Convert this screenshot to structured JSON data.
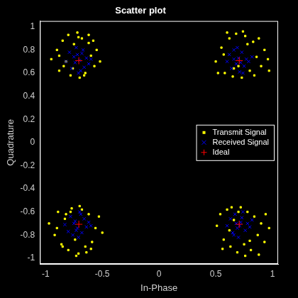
{
  "chart_data": {
    "type": "scatter",
    "title": "Scatter plot",
    "x_label": "In-Phase",
    "y_label": "Quadrature",
    "xlim": [
      -1.05,
      1.05
    ],
    "ylim": [
      -1.05,
      1.05
    ],
    "xticks": [
      -1,
      -0.5,
      0,
      0.5,
      1
    ],
    "yticks": [
      -1,
      -0.8,
      -0.6,
      -0.4,
      -0.2,
      0,
      0.2,
      0.4,
      0.6,
      0.8,
      1
    ],
    "grid": false,
    "legend": "right",
    "series": [
      {
        "name": "Transmit Signal",
        "color": "#ffff00",
        "marker": "square",
        "x": [
          -0.95,
          -0.9,
          -0.88,
          -0.85,
          -0.82,
          -0.8,
          -0.78,
          -0.75,
          -0.72,
          -0.7,
          -0.68,
          -0.65,
          -0.62,
          -0.6,
          -0.57,
          -0.55,
          -0.52,
          -0.88,
          -0.62,
          -0.76,
          -0.66,
          -0.84,
          -0.58,
          -0.71,
          0.5,
          0.55,
          0.58,
          0.62,
          0.65,
          0.68,
          0.7,
          0.73,
          0.76,
          0.8,
          0.83,
          0.86,
          0.9,
          0.93,
          0.96,
          0.52,
          0.6,
          0.88,
          0.78,
          0.66,
          0.84,
          0.57,
          0.74,
          0.97,
          -0.97,
          -0.92,
          -0.89,
          -0.86,
          -0.83,
          -0.8,
          -0.77,
          -0.74,
          -0.71,
          -0.68,
          -0.65,
          -0.62,
          -0.59,
          -0.56,
          -0.53,
          -0.5,
          -0.9,
          -0.64,
          -0.78,
          -0.7,
          -0.85,
          -0.6,
          -0.73,
          -0.82,
          0.51,
          0.54,
          0.57,
          0.6,
          0.63,
          0.66,
          0.69,
          0.72,
          0.75,
          0.78,
          0.81,
          0.84,
          0.87,
          0.9,
          0.93,
          0.97,
          0.56,
          0.64,
          0.88,
          0.7,
          0.8,
          0.62,
          0.76,
          0.94
        ],
        "values": [
          0.72,
          0.8,
          0.62,
          0.88,
          0.7,
          0.93,
          0.58,
          0.85,
          0.95,
          0.56,
          0.9,
          0.6,
          0.86,
          0.75,
          0.66,
          0.8,
          0.7,
          0.75,
          0.93,
          0.64,
          0.58,
          0.66,
          0.88,
          0.91,
          0.7,
          0.82,
          0.6,
          0.9,
          0.57,
          0.94,
          0.66,
          0.56,
          0.92,
          0.62,
          0.87,
          0.74,
          0.66,
          0.8,
          0.72,
          0.6,
          0.95,
          0.9,
          0.85,
          0.64,
          0.58,
          0.76,
          0.96,
          0.62,
          -0.7,
          -0.8,
          -0.6,
          -0.88,
          -0.66,
          -0.93,
          -0.57,
          -0.84,
          -0.96,
          -0.58,
          -0.9,
          -0.62,
          -0.86,
          -0.74,
          -0.64,
          -0.78,
          -0.74,
          -0.95,
          -0.6,
          -0.55,
          -0.9,
          -0.92,
          -0.98,
          -0.62,
          -0.72,
          -0.62,
          -0.84,
          -0.58,
          -0.9,
          -0.67,
          -0.95,
          -0.56,
          -0.88,
          -0.6,
          -0.93,
          -0.64,
          -0.8,
          -0.7,
          -0.86,
          -0.74,
          -0.92,
          -0.56,
          -0.97,
          -0.6,
          -0.85,
          -0.76,
          -0.98,
          -0.62
        ]
      },
      {
        "name": "Received Signal",
        "color": "#0000ff",
        "marker": "x",
        "x": [
          -0.82,
          -0.79,
          -0.77,
          -0.75,
          -0.73,
          -0.71,
          -0.7,
          -0.68,
          -0.66,
          -0.64,
          -0.62,
          -0.6,
          -0.74,
          -0.69,
          -0.72,
          -0.67,
          0.6,
          0.62,
          0.64,
          0.66,
          0.68,
          0.7,
          0.71,
          0.73,
          0.75,
          0.77,
          0.79,
          0.82,
          0.69,
          0.74,
          0.72,
          0.66,
          -0.83,
          -0.8,
          -0.78,
          -0.76,
          -0.74,
          -0.72,
          -0.7,
          -0.68,
          -0.66,
          -0.64,
          -0.62,
          -0.6,
          -0.71,
          -0.75,
          -0.69,
          -0.73,
          0.6,
          0.63,
          0.65,
          0.67,
          0.69,
          0.7,
          0.72,
          0.74,
          0.76,
          0.78,
          0.8,
          0.82,
          0.71,
          0.68,
          0.73,
          0.66
        ],
        "values": [
          0.7,
          0.78,
          0.64,
          0.74,
          0.82,
          0.6,
          0.71,
          0.77,
          0.65,
          0.73,
          0.68,
          0.72,
          0.69,
          0.62,
          0.76,
          0.8,
          0.7,
          0.76,
          0.64,
          0.8,
          0.68,
          0.73,
          0.61,
          0.78,
          0.66,
          0.72,
          0.7,
          0.74,
          0.82,
          0.6,
          0.69,
          0.72,
          -0.71,
          -0.77,
          -0.64,
          -0.8,
          -0.68,
          -0.74,
          -0.6,
          -0.78,
          -0.66,
          -0.73,
          -0.69,
          -0.72,
          -0.82,
          -0.7,
          -0.62,
          -0.76,
          -0.72,
          -0.66,
          -0.78,
          -0.62,
          -0.74,
          -0.82,
          -0.69,
          -0.6,
          -0.76,
          -0.7,
          -0.73,
          -0.67,
          -0.72,
          -0.7,
          -0.65,
          -0.8
        ]
      },
      {
        "name": "Ideal",
        "color": "#ff0000",
        "marker": "+",
        "x": [
          -0.7071,
          0.7071,
          -0.7071,
          0.7071
        ],
        "values": [
          0.7071,
          0.7071,
          -0.7071,
          -0.7071
        ]
      }
    ]
  }
}
